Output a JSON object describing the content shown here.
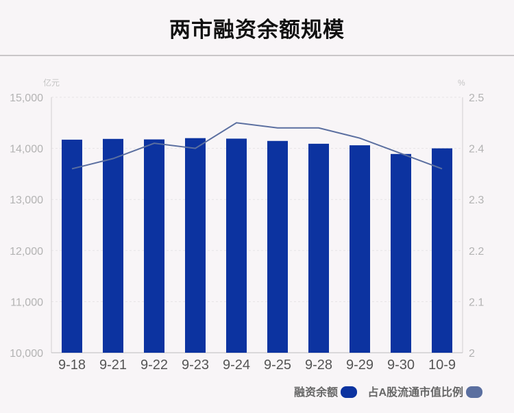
{
  "page": {
    "title": "两市融资余额规模"
  },
  "chart_data": {
    "type": "bar",
    "categories": [
      "9-18",
      "9-21",
      "9-22",
      "9-23",
      "9-24",
      "9-25",
      "9-28",
      "9-29",
      "9-30",
      "10-9"
    ],
    "series": [
      {
        "name": "融资余额",
        "type": "bar",
        "axis": "left",
        "color": "#0c33a0",
        "values": [
          14170,
          14185,
          14175,
          14200,
          14190,
          14145,
          14090,
          14060,
          13890,
          14000
        ]
      },
      {
        "name": "占A股流通市值比例",
        "type": "line",
        "axis": "right",
        "color": "#5b6fa0",
        "values": [
          2.36,
          2.38,
          2.41,
          2.4,
          2.45,
          2.44,
          2.44,
          2.42,
          2.39,
          2.36
        ]
      }
    ],
    "y_left": {
      "unit": "亿元",
      "ylim": [
        10000,
        15000
      ],
      "ticks": [
        "10,000",
        "11,000",
        "12,000",
        "13,000",
        "14,000",
        "15,000"
      ]
    },
    "y_right": {
      "unit": "%",
      "ylim": [
        2,
        2.5
      ],
      "ticks": [
        "2",
        "2.1",
        "2.2",
        "2.3",
        "2.4",
        "2.5"
      ]
    },
    "grid": true,
    "legend": {
      "placement": "bottom-right"
    }
  }
}
